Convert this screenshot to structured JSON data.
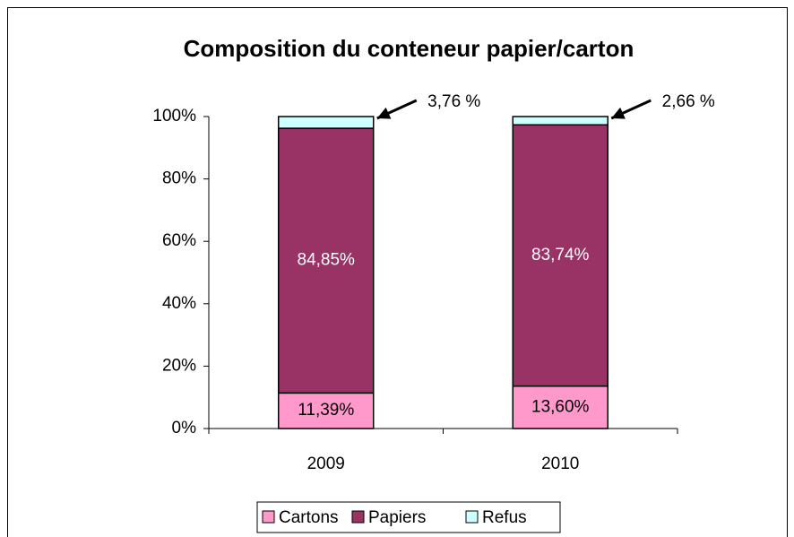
{
  "chart_data": {
    "type": "stacked_bar",
    "title": "Composition du conteneur papier/carton",
    "categories": [
      "2009",
      "2010"
    ],
    "series": [
      {
        "name": "Cartons",
        "color": "#ff99cc",
        "values": [
          11.39,
          13.6
        ],
        "value_labels": [
          "11,39%",
          "13,60%"
        ]
      },
      {
        "name": "Papiers",
        "color": "#993366",
        "values": [
          84.85,
          83.74
        ],
        "value_labels": [
          "84,85%",
          "83,74%"
        ]
      },
      {
        "name": "Refus",
        "color": "#ccffff",
        "values": [
          3.76,
          2.66
        ],
        "value_labels": [
          "3,76 %",
          "2,66 %"
        ]
      }
    ],
    "ylim": [
      0,
      100
    ],
    "yticks": [
      {
        "value": 0,
        "label": "0%"
      },
      {
        "value": 20,
        "label": "20%"
      },
      {
        "value": 40,
        "label": "40%"
      },
      {
        "value": 60,
        "label": "60%"
      },
      {
        "value": 80,
        "label": "80%"
      },
      {
        "value": 100,
        "label": "100%"
      }
    ],
    "grid": false,
    "legend": "bottom"
  }
}
